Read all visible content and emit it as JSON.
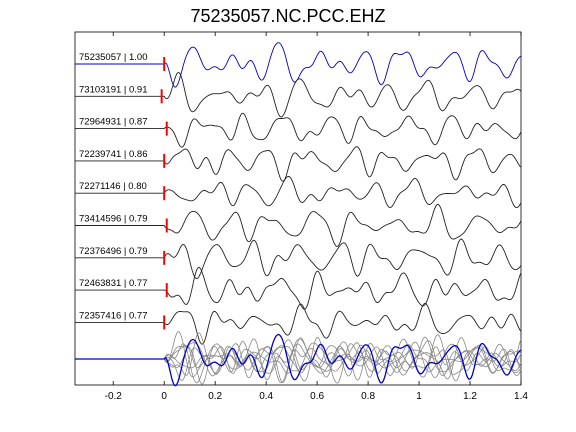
{
  "chart_data": {
    "type": "line",
    "title": "75235057.NC.PCC.EHZ",
    "xlabel": "",
    "ylabel": "",
    "xlim": [
      -0.35,
      1.4
    ],
    "xticks": [
      "-0.2",
      "0",
      "0.2",
      "0.4",
      "0.6",
      "0.8",
      "1",
      "1.2",
      "1.4"
    ],
    "xtick_values": [
      -0.2,
      0,
      0.2,
      0.4,
      0.6,
      0.8,
      1.0,
      1.2,
      1.4
    ],
    "grid": false,
    "colors": {
      "reference": "#0000cc",
      "trace": "#222222",
      "stack": "#888888",
      "pick": "#ff0000"
    },
    "traces": [
      {
        "event_id": "75235057",
        "cc": "1.00",
        "label": "75235057 | 1.00",
        "pick_time": 0.0,
        "reference": true
      },
      {
        "event_id": "73103191",
        "cc": "0.91",
        "label": "73103191 | 0.91",
        "pick_time": -0.01
      },
      {
        "event_id": "72964931",
        "cc": "0.87",
        "label": "72964931 | 0.87",
        "pick_time": 0.01
      },
      {
        "event_id": "72239741",
        "cc": "0.86",
        "label": "72239741 | 0.86",
        "pick_time": 0.0
      },
      {
        "event_id": "72271146",
        "cc": "0.80",
        "label": "72271146 | 0.80",
        "pick_time": 0.0
      },
      {
        "event_id": "73414596",
        "cc": "0.79",
        "label": "73414596 | 0.79",
        "pick_time": 0.01
      },
      {
        "event_id": "72376496",
        "cc": "0.79",
        "label": "72376496 | 0.79",
        "pick_time": 0.0
      },
      {
        "event_id": "72463831",
        "cc": "0.77",
        "label": "72463831 | 0.77",
        "pick_time": 0.01
      },
      {
        "event_id": "72357416",
        "cc": "0.77",
        "label": "72357416 | 0.77",
        "pick_time": 0.0
      }
    ]
  }
}
